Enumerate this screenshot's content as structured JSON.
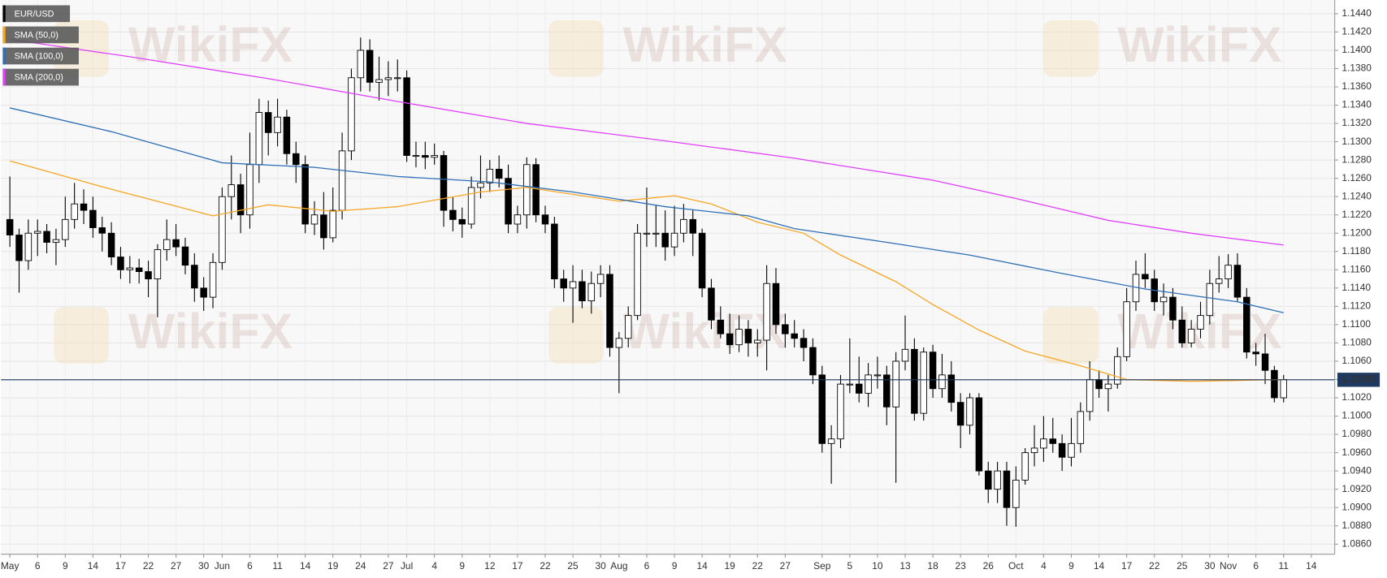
{
  "chart_data": {
    "type": "candlestick",
    "title": "EUR/USD",
    "watermark": "WikiFX",
    "up_color": "#ffffff",
    "down_color": "#000000",
    "price_line_color": "#1f3a60",
    "last_price": 1.10397,
    "grid": true,
    "ylim": [
      1.0849,
      1.1455
    ],
    "yticks": [
      {
        "value": 1.144,
        "label": "1.1440"
      },
      {
        "value": 1.142,
        "label": "1.1420"
      },
      {
        "value": 1.14,
        "label": "1.1400"
      },
      {
        "value": 1.138,
        "label": "1.1380"
      },
      {
        "value": 1.136,
        "label": "1.1360"
      },
      {
        "value": 1.134,
        "label": "1.1340"
      },
      {
        "value": 1.132,
        "label": "1.1320"
      },
      {
        "value": 1.13,
        "label": "1.1300"
      },
      {
        "value": 1.128,
        "label": "1.1280"
      },
      {
        "value": 1.126,
        "label": "1.1260"
      },
      {
        "value": 1.124,
        "label": "1.1240"
      },
      {
        "value": 1.122,
        "label": "1.1220"
      },
      {
        "value": 1.12,
        "label": "1.1200"
      },
      {
        "value": 1.118,
        "label": "1.1180"
      },
      {
        "value": 1.116,
        "label": "1.1160"
      },
      {
        "value": 1.114,
        "label": "1.1140"
      },
      {
        "value": 1.112,
        "label": "1.1120"
      },
      {
        "value": 1.11,
        "label": "1.1100"
      },
      {
        "value": 1.108,
        "label": "1.1080"
      },
      {
        "value": 1.106,
        "label": "1.1060"
      },
      {
        "value": 1.104,
        "label": "1.1040"
      },
      {
        "value": 1.102,
        "label": "1.1020"
      },
      {
        "value": 1.1,
        "label": "1.1000"
      },
      {
        "value": 1.098,
        "label": "1.0980"
      },
      {
        "value": 1.096,
        "label": "1.0960"
      },
      {
        "value": 1.094,
        "label": "1.0940"
      },
      {
        "value": 1.092,
        "label": "1.0920"
      },
      {
        "value": 1.09,
        "label": "1.0900"
      },
      {
        "value": 1.088,
        "label": "1.0880"
      },
      {
        "value": 1.086,
        "label": "1.0860"
      }
    ],
    "categories": [
      "May",
      null,
      null,
      "6",
      null,
      null,
      "9",
      null,
      null,
      "14",
      null,
      null,
      "17",
      null,
      null,
      "22",
      null,
      null,
      "27",
      null,
      null,
      "30",
      null,
      "Jun",
      null,
      null,
      "6",
      null,
      null,
      "11",
      null,
      null,
      "14",
      null,
      null,
      "19",
      null,
      null,
      "24",
      null,
      null,
      "27",
      null,
      "Jul",
      null,
      null,
      "4",
      null,
      null,
      "9",
      null,
      null,
      "12",
      null,
      null,
      "17",
      null,
      null,
      "22",
      null,
      null,
      "25",
      null,
      null,
      "30",
      null,
      "Aug",
      null,
      null,
      "6",
      null,
      null,
      "9",
      null,
      null,
      "14",
      null,
      null,
      "19",
      null,
      null,
      "22",
      null,
      null,
      "27",
      null,
      null,
      null,
      "Sep",
      null,
      null,
      "5",
      null,
      null,
      "10",
      null,
      null,
      "13",
      null,
      null,
      "18",
      null,
      null,
      "23",
      null,
      null,
      "26",
      null,
      null,
      "Oct",
      null,
      null,
      "4",
      null,
      null,
      "9",
      null,
      null,
      "14",
      null,
      null,
      "17",
      null,
      null,
      "22",
      null,
      null,
      "25",
      null,
      null,
      "30",
      null,
      "Nov",
      null,
      null,
      "6",
      null,
      null,
      "11",
      null,
      null,
      "14"
    ],
    "candles": [
      [
        1.1215,
        1.1262,
        1.1185,
        1.1198
      ],
      [
        1.1198,
        1.1205,
        1.1135,
        1.117
      ],
      [
        1.117,
        1.1215,
        1.116,
        1.12
      ],
      [
        1.12,
        1.1215,
        1.1175,
        1.1202
      ],
      [
        1.1202,
        1.121,
        1.1178,
        1.119
      ],
      [
        1.119,
        1.1205,
        1.1165,
        1.1193
      ],
      [
        1.1193,
        1.124,
        1.1185,
        1.1215
      ],
      [
        1.1215,
        1.1255,
        1.1205,
        1.1232
      ],
      [
        1.1232,
        1.1248,
        1.121,
        1.1225
      ],
      [
        1.1225,
        1.124,
        1.1195,
        1.1206
      ],
      [
        1.1206,
        1.1218,
        1.118,
        1.12
      ],
      [
        1.12,
        1.1212,
        1.1165,
        1.1174
      ],
      [
        1.1174,
        1.1185,
        1.115,
        1.116
      ],
      [
        1.116,
        1.1175,
        1.1145,
        1.1162
      ],
      [
        1.1162,
        1.1172,
        1.1145,
        1.1158
      ],
      [
        1.1158,
        1.117,
        1.113,
        1.115
      ],
      [
        1.115,
        1.1188,
        1.1108,
        1.1182
      ],
      [
        1.1182,
        1.1215,
        1.117,
        1.1193
      ],
      [
        1.1193,
        1.121,
        1.1175,
        1.1185
      ],
      [
        1.1185,
        1.1195,
        1.1155,
        1.1165
      ],
      [
        1.1165,
        1.1178,
        1.1125,
        1.114
      ],
      [
        1.114,
        1.1152,
        1.1115,
        1.113
      ],
      [
        1.113,
        1.1178,
        1.1118,
        1.1168
      ],
      [
        1.1168,
        1.125,
        1.116,
        1.124
      ],
      [
        1.124,
        1.1285,
        1.1215,
        1.1253
      ],
      [
        1.1253,
        1.1265,
        1.12,
        1.122
      ],
      [
        1.122,
        1.131,
        1.1205,
        1.1275
      ],
      [
        1.1275,
        1.1347,
        1.1255,
        1.1332
      ],
      [
        1.1332,
        1.1345,
        1.1285,
        1.131
      ],
      [
        1.131,
        1.1347,
        1.1295,
        1.1327
      ],
      [
        1.1327,
        1.1335,
        1.1275,
        1.1287
      ],
      [
        1.1287,
        1.13,
        1.1255,
        1.1275
      ],
      [
        1.1275,
        1.1285,
        1.12,
        1.121
      ],
      [
        1.121,
        1.1235,
        1.1198,
        1.122
      ],
      [
        1.122,
        1.1245,
        1.1182,
        1.1195
      ],
      [
        1.1195,
        1.125,
        1.119,
        1.1225
      ],
      [
        1.1225,
        1.131,
        1.1215,
        1.129
      ],
      [
        1.129,
        1.138,
        1.128,
        1.137
      ],
      [
        1.137,
        1.1414,
        1.1355,
        1.14
      ],
      [
        1.14,
        1.1412,
        1.1355,
        1.1365
      ],
      [
        1.1365,
        1.1393,
        1.1345,
        1.1368
      ],
      [
        1.1368,
        1.1388,
        1.135,
        1.137
      ],
      [
        1.137,
        1.139,
        1.1355,
        1.137
      ],
      [
        1.137,
        1.1378,
        1.1278,
        1.1285
      ],
      [
        1.1285,
        1.13,
        1.1272,
        1.1285
      ],
      [
        1.1285,
        1.13,
        1.127,
        1.1283
      ],
      [
        1.1283,
        1.1298,
        1.1275,
        1.1285
      ],
      [
        1.1285,
        1.129,
        1.1207,
        1.1225
      ],
      [
        1.1225,
        1.124,
        1.1202,
        1.1215
      ],
      [
        1.1215,
        1.1228,
        1.1195,
        1.121
      ],
      [
        1.121,
        1.1262,
        1.1205,
        1.125
      ],
      [
        1.125,
        1.1285,
        1.1238,
        1.1255
      ],
      [
        1.1255,
        1.128,
        1.1245,
        1.127
      ],
      [
        1.127,
        1.1285,
        1.125,
        1.126
      ],
      [
        1.126,
        1.1275,
        1.12,
        1.121
      ],
      [
        1.121,
        1.123,
        1.12,
        1.122
      ],
      [
        1.122,
        1.1283,
        1.1205,
        1.1275
      ],
      [
        1.1275,
        1.1282,
        1.1212,
        1.122
      ],
      [
        1.122,
        1.123,
        1.12,
        1.121
      ],
      [
        1.121,
        1.1218,
        1.114,
        1.115
      ],
      [
        1.115,
        1.116,
        1.1125,
        1.114
      ],
      [
        1.114,
        1.1165,
        1.1102,
        1.1147
      ],
      [
        1.1147,
        1.116,
        1.1118,
        1.1126
      ],
      [
        1.1126,
        1.1158,
        1.1112,
        1.1145
      ],
      [
        1.1145,
        1.1165,
        1.113,
        1.1155
      ],
      [
        1.1155,
        1.1165,
        1.1065,
        1.1075
      ],
      [
        1.1075,
        1.1092,
        1.1025,
        1.1085
      ],
      [
        1.1085,
        1.112,
        1.1075,
        1.111
      ],
      [
        1.111,
        1.121,
        1.1105,
        1.12
      ],
      [
        1.12,
        1.125,
        1.1185,
        1.12
      ],
      [
        1.12,
        1.123,
        1.1185,
        1.12
      ],
      [
        1.12,
        1.1225,
        1.117,
        1.1185
      ],
      [
        1.1185,
        1.123,
        1.1175,
        1.12
      ],
      [
        1.12,
        1.1232,
        1.119,
        1.1215
      ],
      [
        1.1215,
        1.1225,
        1.1175,
        1.12
      ],
      [
        1.12,
        1.1205,
        1.113,
        1.114
      ],
      [
        1.114,
        1.115,
        1.1095,
        1.1105
      ],
      [
        1.1105,
        1.112,
        1.1085,
        1.109
      ],
      [
        1.109,
        1.1112,
        1.1068,
        1.1078
      ],
      [
        1.1078,
        1.111,
        1.107,
        1.1095
      ],
      [
        1.1095,
        1.1105,
        1.1065,
        1.108
      ],
      [
        1.108,
        1.1095,
        1.1065,
        1.1083
      ],
      [
        1.1083,
        1.1165,
        1.105,
        1.1145
      ],
      [
        1.1145,
        1.1162,
        1.109,
        1.11
      ],
      [
        1.11,
        1.1112,
        1.1075,
        1.109
      ],
      [
        1.109,
        1.1105,
        1.1075,
        1.1085
      ],
      [
        1.1085,
        1.1095,
        1.106,
        1.1075
      ],
      [
        1.1075,
        1.1085,
        1.1035,
        1.1045
      ],
      [
        1.1045,
        1.1055,
        1.096,
        1.097
      ],
      [
        1.097,
        1.099,
        1.0926,
        1.0975
      ],
      [
        1.0975,
        1.1045,
        1.0965,
        1.1035
      ],
      [
        1.1035,
        1.1085,
        1.1025,
        1.1035
      ],
      [
        1.1035,
        1.1065,
        1.1015,
        1.1025
      ],
      [
        1.1025,
        1.1058,
        1.101,
        1.1045
      ],
      [
        1.1045,
        1.1065,
        1.103,
        1.1045
      ],
      [
        1.1045,
        1.1055,
        1.099,
        1.101
      ],
      [
        1.101,
        1.107,
        1.0927,
        1.106
      ],
      [
        1.106,
        1.111,
        1.105,
        1.1073
      ],
      [
        1.1073,
        1.1085,
        1.0995,
        1.1003
      ],
      [
        1.1003,
        1.1075,
        1.0995,
        1.107
      ],
      [
        1.107,
        1.1078,
        1.102,
        1.103
      ],
      [
        1.103,
        1.1068,
        1.102,
        1.1045
      ],
      [
        1.1045,
        1.106,
        1.1005,
        1.1015
      ],
      [
        1.1015,
        1.1025,
        1.0965,
        1.099
      ],
      [
        1.099,
        1.1025,
        1.098,
        1.102
      ],
      [
        1.102,
        1.1025,
        1.0935,
        1.094
      ],
      [
        1.094,
        1.095,
        1.0905,
        1.092
      ],
      [
        1.092,
        1.095,
        1.0905,
        1.094
      ],
      [
        1.094,
        1.095,
        1.088,
        1.09
      ],
      [
        1.09,
        1.0945,
        1.0879,
        1.093
      ],
      [
        1.093,
        1.0965,
        1.0925,
        1.096
      ],
      [
        1.096,
        1.099,
        1.0945,
        1.0965
      ],
      [
        1.0965,
        1.1,
        1.095,
        1.0975
      ],
      [
        1.0975,
        1.0998,
        1.096,
        1.097
      ],
      [
        1.097,
        1.098,
        1.094,
        1.0955
      ],
      [
        1.0955,
        1.0998,
        1.0945,
        1.097
      ],
      [
        1.097,
        1.1015,
        1.096,
        1.1005
      ],
      [
        1.1005,
        1.106,
        1.0995,
        1.104
      ],
      [
        1.104,
        1.105,
        1.102,
        1.103
      ],
      [
        1.103,
        1.1045,
        1.1005,
        1.1035
      ],
      [
        1.1035,
        1.1075,
        1.103,
        1.1065
      ],
      [
        1.1065,
        1.114,
        1.106,
        1.1125
      ],
      [
        1.1125,
        1.117,
        1.1115,
        1.1155
      ],
      [
        1.1155,
        1.1178,
        1.114,
        1.115
      ],
      [
        1.115,
        1.116,
        1.1115,
        1.1125
      ],
      [
        1.1125,
        1.1145,
        1.111,
        1.113
      ],
      [
        1.113,
        1.114,
        1.1095,
        1.1105
      ],
      [
        1.1105,
        1.112,
        1.1075,
        1.108
      ],
      [
        1.108,
        1.1105,
        1.1075,
        1.1095
      ],
      [
        1.1095,
        1.1125,
        1.1085,
        1.111
      ],
      [
        1.111,
        1.116,
        1.11,
        1.1145
      ],
      [
        1.1145,
        1.1175,
        1.1135,
        1.115
      ],
      [
        1.115,
        1.1177,
        1.114,
        1.1165
      ],
      [
        1.1165,
        1.1178,
        1.1125,
        1.113
      ],
      [
        1.113,
        1.114,
        1.1063,
        1.107
      ],
      [
        1.107,
        1.108,
        1.1055,
        1.1068
      ],
      [
        1.1068,
        1.109,
        1.1035,
        1.105
      ],
      [
        1.105,
        1.1055,
        1.1015,
        1.102
      ],
      [
        1.102,
        1.1045,
        1.1015,
        1.104
      ],
      null,
      null,
      null
    ],
    "series": [
      {
        "name": "SMA (50,0)",
        "color": "#f5a623",
        "x": [
          0,
          11,
          22,
          28,
          35,
          42,
          51,
          56,
          66,
          72,
          76,
          81,
          86,
          90,
          96,
          100,
          105,
          110,
          116,
          121,
          128,
          138
        ],
        "values": [
          1.1279,
          1.1248,
          1.1219,
          1.1231,
          1.1224,
          1.1229,
          1.1245,
          1.125,
          1.1235,
          1.1241,
          1.1232,
          1.1212,
          1.12,
          1.1176,
          1.1147,
          1.1122,
          1.1094,
          1.1071,
          1.1055,
          1.104,
          1.1038,
          1.104
        ]
      },
      {
        "name": "SMA (100,0)",
        "color": "#2e6fb5",
        "x": [
          0,
          11,
          23,
          33,
          42,
          52,
          61,
          71,
          80,
          85,
          95,
          104,
          114,
          123,
          133,
          138
        ],
        "values": [
          1.1337,
          1.1311,
          1.1277,
          1.1272,
          1.1262,
          1.1256,
          1.1245,
          1.1229,
          1.1219,
          1.1205,
          1.119,
          1.1176,
          1.1156,
          1.1139,
          1.1125,
          1.1113
        ]
      },
      {
        "name": "SMA (200,0)",
        "color": "#e040fb",
        "x": [
          0,
          13,
          28,
          42,
          56,
          71,
          85,
          100,
          109,
          119,
          128,
          138
        ],
        "values": [
          1.1412,
          1.1393,
          1.1369,
          1.1344,
          1.132,
          1.1301,
          1.1282,
          1.1258,
          1.1238,
          1.1214,
          1.12,
          1.1187
        ]
      }
    ]
  }
}
